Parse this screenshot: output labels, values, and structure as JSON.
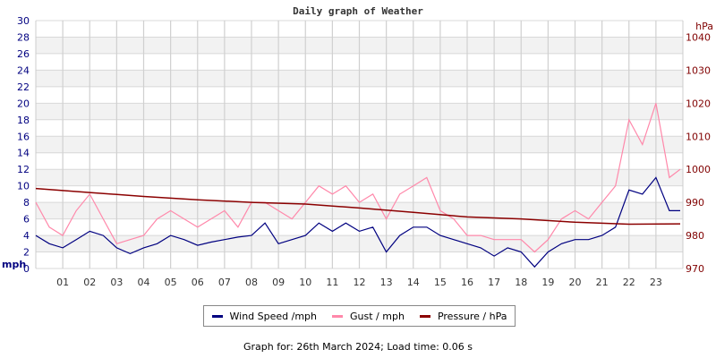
{
  "chart_data": {
    "type": "line",
    "title": "Daily graph of Weather",
    "x_tick_labels": [
      "01",
      "02",
      "03",
      "04",
      "05",
      "06",
      "07",
      "08",
      "09",
      "10",
      "11",
      "12",
      "13",
      "14",
      "15",
      "16",
      "17",
      "18",
      "19",
      "20",
      "21",
      "22",
      "23"
    ],
    "xlim": [
      0,
      24
    ],
    "left_axis": {
      "label": "mph",
      "ylim": [
        0,
        30
      ],
      "ticks": [
        0,
        2,
        4,
        6,
        8,
        10,
        12,
        14,
        16,
        18,
        20,
        22,
        24,
        26,
        28,
        30
      ],
      "color": "#000080"
    },
    "right_axis": {
      "label": "hPa",
      "ylim": [
        970,
        1040
      ],
      "ticks": [
        970,
        980,
        990,
        1000,
        1010,
        1020,
        1030,
        1040
      ],
      "color": "#800000"
    },
    "grid": true,
    "legend_position": "bottom",
    "series": [
      {
        "name": "Wind Speed /mph",
        "color": "#000080",
        "axis": "left",
        "x": [
          0,
          0.5,
          1,
          1.5,
          2,
          2.5,
          3,
          3.5,
          4,
          4.5,
          5,
          5.5,
          6,
          6.5,
          7,
          7.5,
          8,
          8.5,
          9,
          9.5,
          10,
          10.5,
          11,
          11.5,
          12,
          12.5,
          13,
          13.5,
          14,
          14.5,
          15,
          15.5,
          16,
          16.5,
          17,
          17.5,
          18,
          18.5,
          19,
          19.5,
          20,
          20.5,
          21,
          21.5,
          22,
          22.5,
          23,
          23.5,
          23.9
        ],
        "values": [
          4,
          3,
          2.5,
          3.5,
          4.5,
          4,
          2.5,
          1.8,
          2.5,
          3,
          4,
          3.5,
          2.8,
          3.2,
          3.5,
          3.8,
          4,
          5.5,
          3,
          3.5,
          4,
          5.5,
          4.5,
          5.5,
          4.5,
          5,
          2,
          4,
          5,
          5,
          4,
          3.5,
          3,
          2.5,
          1.5,
          2.5,
          2,
          0.2,
          2,
          3,
          3.5,
          3.5,
          4,
          5,
          9.5,
          9,
          11,
          7,
          7
        ]
      },
      {
        "name": "Gust / mph",
        "color": "#ff88aa",
        "axis": "left",
        "x": [
          0,
          0.5,
          1,
          1.5,
          2,
          2.5,
          3,
          3.5,
          4,
          4.5,
          5,
          5.5,
          6,
          6.5,
          7,
          7.5,
          8,
          8.5,
          9,
          9.5,
          10,
          10.5,
          11,
          11.5,
          12,
          12.5,
          13,
          13.5,
          14,
          14.5,
          15,
          15.5,
          16,
          16.5,
          17,
          17.5,
          18,
          18.5,
          19,
          19.5,
          20,
          20.5,
          21,
          21.5,
          22,
          22.5,
          23,
          23.5,
          23.9
        ],
        "values": [
          8,
          5,
          4,
          7,
          9,
          6,
          3,
          3.5,
          4,
          6,
          7,
          6,
          5,
          6,
          7,
          5,
          8,
          8,
          7,
          6,
          8,
          10,
          9,
          10,
          8,
          9,
          6,
          9,
          10,
          11,
          7,
          6,
          4,
          4,
          3.5,
          3.5,
          3.5,
          2,
          3.5,
          6,
          7,
          6,
          8,
          10,
          18,
          15,
          20,
          11,
          12
        ]
      },
      {
        "name": "Pressure / hPa",
        "color": "#8b0000",
        "axis": "right",
        "x": [
          0,
          2,
          4,
          6,
          8,
          10,
          12,
          14,
          16,
          18,
          20,
          22,
          23.9
        ],
        "values": [
          994.2,
          993,
          991.8,
          990.8,
          990,
          989.5,
          988.3,
          987,
          985.6,
          985,
          984,
          983.4,
          983.5
        ]
      }
    ]
  },
  "legend": {
    "wind": "Wind Speed /mph",
    "gust": "Gust / mph",
    "pressure": "Pressure / hPa"
  },
  "footer": "Graph for: 26th March 2024; Load time: 0.06 s"
}
